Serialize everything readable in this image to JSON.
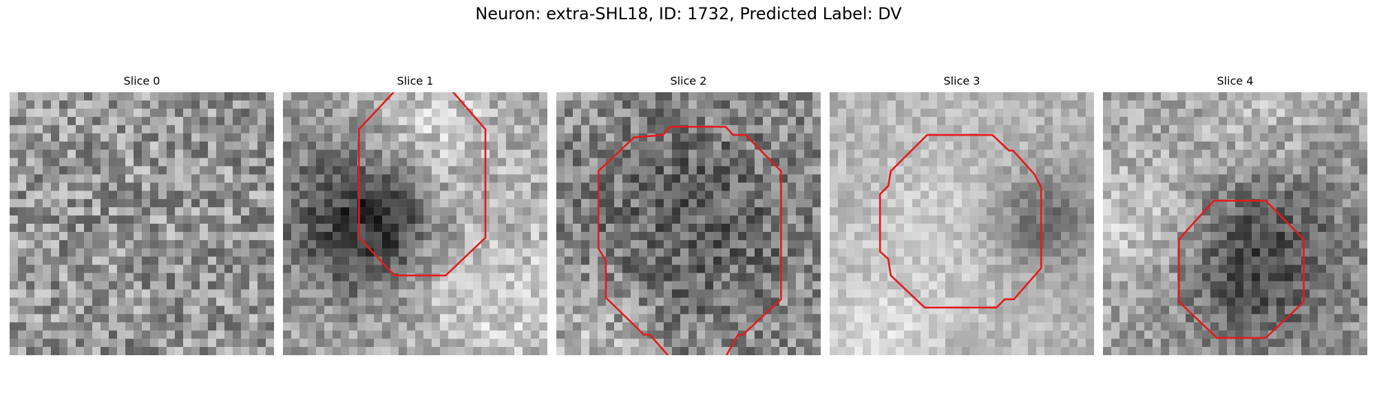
{
  "figure": {
    "title": "Neuron: extra-SHL18, ID: 1732, Predicted Label: DV",
    "contour_color": "#e41a1c"
  },
  "slices": [
    {
      "title": "Slice 0"
    },
    {
      "title": "Slice 1"
    },
    {
      "title": "Slice 2"
    },
    {
      "title": "Slice 3"
    },
    {
      "title": "Slice 4"
    }
  ]
}
